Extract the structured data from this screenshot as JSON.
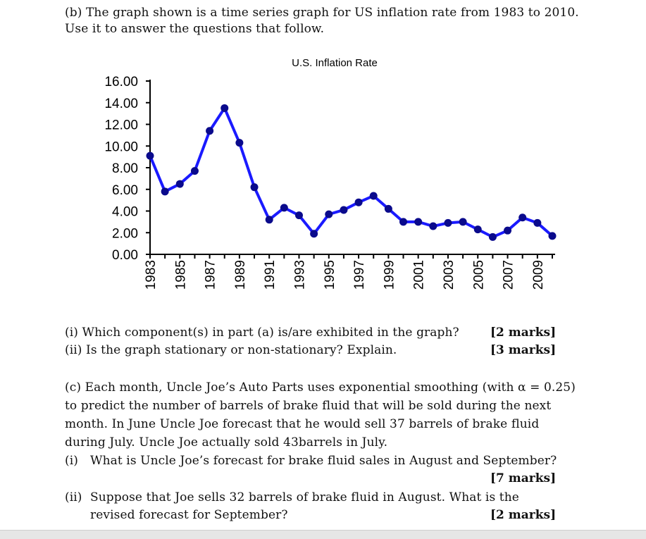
{
  "part_b": {
    "line1": "(b) The graph shown is a time series graph for US inflation rate from 1983 to 2010.",
    "line2": "Use it to answer the questions that follow."
  },
  "chart_data": {
    "type": "line",
    "title": "U.S. Inflation Rate",
    "xlabel": "",
    "ylabel": "",
    "ylim": [
      0,
      16
    ],
    "yticks": [
      "16.00",
      "14.00",
      "12.00",
      "10.00",
      "8.00",
      "6.00",
      "4.00",
      "2.00",
      "0.00"
    ],
    "xtick_labels": [
      "1983",
      "1985",
      "1987",
      "1989",
      "1991",
      "1993",
      "1995",
      "1997",
      "1999",
      "2001",
      "2003",
      "2005",
      "2007",
      "2009"
    ],
    "x": [
      1983,
      1984,
      1985,
      1986,
      1987,
      1988,
      1989,
      1990,
      1991,
      1992,
      1993,
      1994,
      1995,
      1996,
      1997,
      1998,
      1999,
      2000,
      2001,
      2002,
      2003,
      2004,
      2005,
      2006,
      2007,
      2008,
      2009,
      2010
    ],
    "series": [
      {
        "values": [
          9.1,
          5.8,
          6.5,
          7.7,
          11.4,
          13.5,
          10.3,
          6.2,
          3.2,
          4.3,
          3.6,
          1.9,
          3.7,
          4.1,
          4.8,
          5.4,
          4.2,
          3.0,
          3.0,
          2.6,
          2.9,
          3.0,
          2.3,
          1.6,
          2.2,
          3.4,
          2.9,
          1.7
        ],
        "color": "#1a1aff",
        "marker_color": "#0a0a8c"
      }
    ]
  },
  "questions_b": {
    "q1": "(i) Which component(s) in part (a) is/are exhibited in the graph?",
    "q1_marks": "[2 marks]",
    "q2": "(ii) Is the graph stationary or non-stationary? Explain.",
    "q2_marks": "[3 marks]"
  },
  "part_c": {
    "l1": "(c) Each month, Uncle Joe’s Auto Parts uses exponential smoothing (with α = 0.25)",
    "l2": "to predict the number of barrels of brake fluid that will be sold during the next",
    "l3": "month. In June Uncle Joe forecast that he would sell 37 barrels of brake fluid",
    "l4": "during July. Uncle Joe actually sold 43barrels in July.",
    "i_label": "(i)",
    "i_text": "What is Uncle Joe’s forecast for brake fluid sales in August and September?",
    "i_marks": "[7 marks]",
    "ii_label": "(ii)",
    "ii_text1": "Suppose that Joe sells 32 barrels of brake fluid in August. What is the",
    "ii_text2": "revised forecast for September?",
    "ii_marks": "[2 marks]"
  }
}
